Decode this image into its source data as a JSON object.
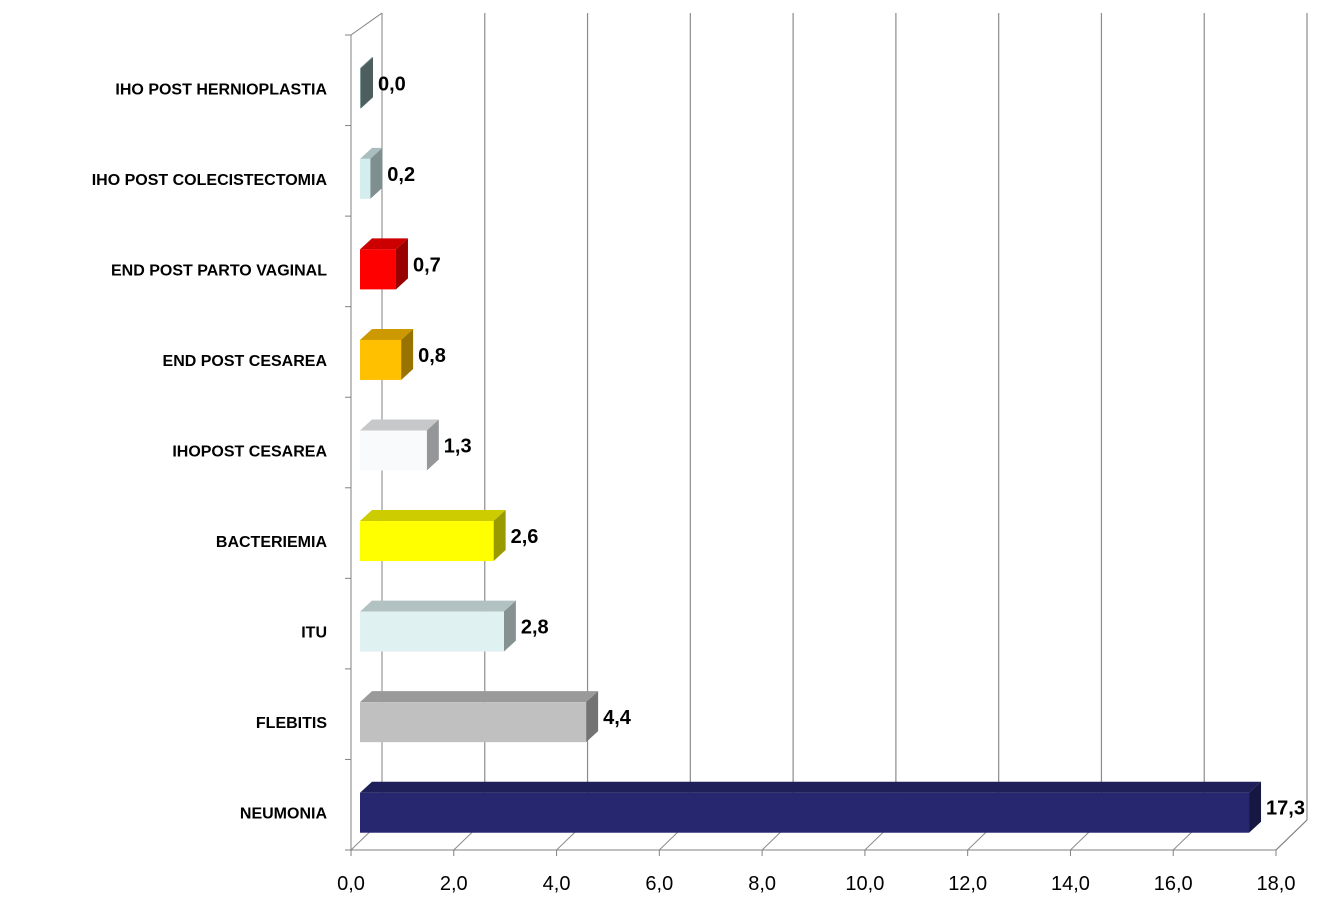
{
  "chart_data": {
    "type": "bar",
    "orientation": "horizontal",
    "style": "3d",
    "title": "",
    "xlabel": "",
    "ylabel": "",
    "xlim": [
      0,
      18
    ],
    "grid": true,
    "legend": "none",
    "categories": [
      "IHO POST HERNIOPLASTIA",
      "IHO POST COLECISTECTOMIA",
      "END POST PARTO VAGINAL",
      "END POST CESAREA",
      "IHOPOST CESAREA",
      "BACTERIEMIA",
      "ITU",
      "FLEBITIS",
      "NEUMONIA"
    ],
    "values": [
      0.0,
      0.2,
      0.7,
      0.8,
      1.3,
      2.6,
      2.8,
      4.4,
      17.3
    ],
    "value_labels": [
      "0,0",
      "0,2",
      "0,7",
      "0,8",
      "1,3",
      "2,6",
      "2,8",
      "4,4",
      "17,3"
    ],
    "colors": [
      "#7f9c9c",
      "#d4eef0",
      "#ff0000",
      "#ffc000",
      "#f8fafc",
      "#ffff00",
      "#dff1f1",
      "#c0c0c0",
      "#27276f"
    ],
    "tick_labels": [
      "0,0",
      "2,0",
      "4,0",
      "6,0",
      "8,0",
      "10,0",
      "12,0",
      "14,0",
      "16,0",
      "18,0"
    ]
  }
}
